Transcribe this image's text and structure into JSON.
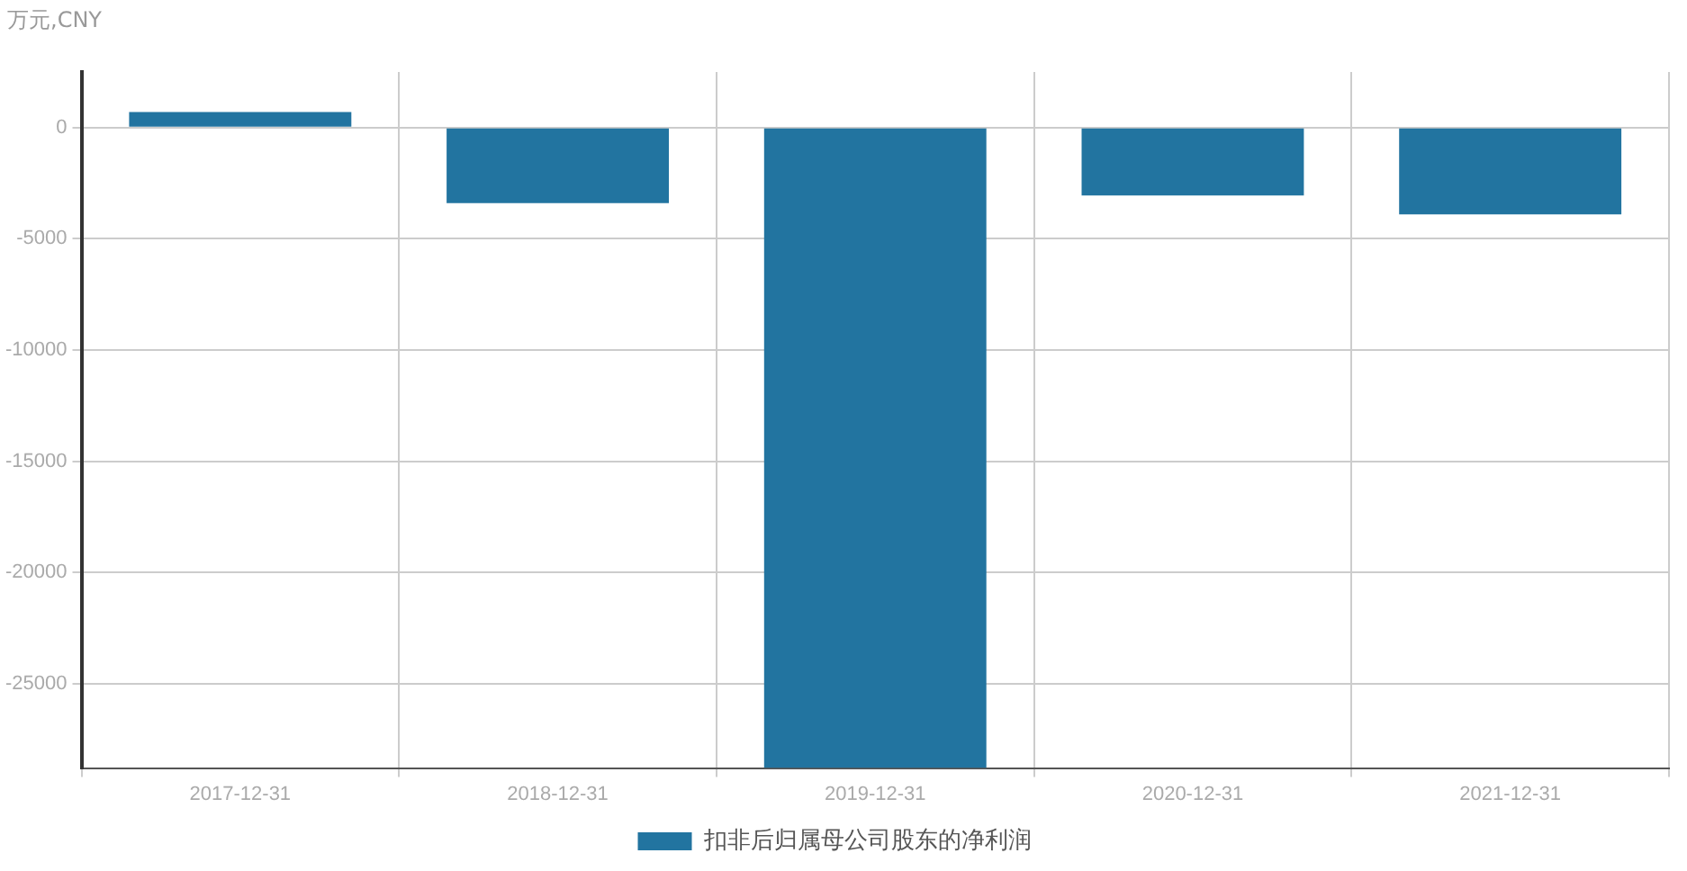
{
  "chart_data": {
    "type": "bar",
    "ylabel": "万元,CNY",
    "categories": [
      "2017-12-31",
      "2018-12-31",
      "2019-12-31",
      "2020-12-31",
      "2021-12-31"
    ],
    "series": [
      {
        "name": "扣非后归属母公司股东的净利润",
        "color": "#2274a0",
        "values": [
          700,
          -3400,
          -28800,
          -3050,
          -3900
        ]
      }
    ],
    "ylim": [
      -28800,
      2500
    ],
    "yticks": [
      -25000,
      -20000,
      -15000,
      -10000,
      -5000,
      0
    ],
    "grid": true,
    "legend": "bottom"
  }
}
